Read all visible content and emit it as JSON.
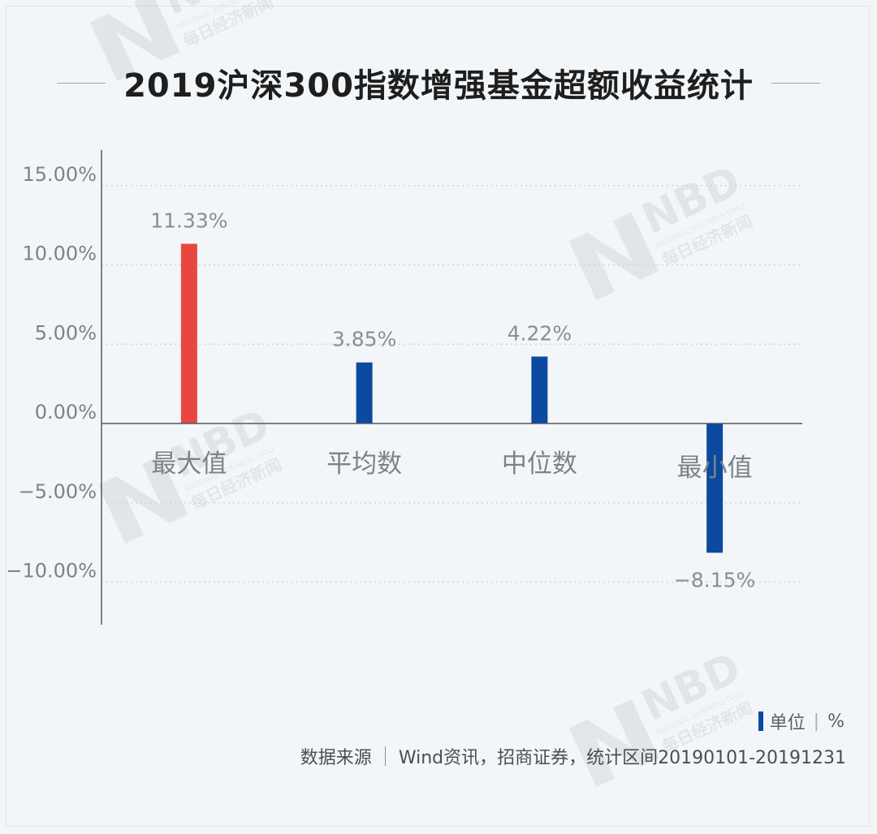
{
  "chart_data": {
    "type": "bar",
    "title": "2019沪深300指数增强基金超额收益统计",
    "categories": [
      "最大值",
      "平均数",
      "中位数",
      "最小值"
    ],
    "values": [
      11.33,
      3.85,
      4.22,
      -8.15
    ],
    "value_labels": [
      "11.33%",
      "3.85%",
      "4.22%",
      "-8.15%"
    ],
    "bar_colors": [
      "#e8473f",
      "#0b4aa0",
      "#0b4aa0",
      "#0b4aa0"
    ],
    "ylim": [
      -12.5,
      17.5
    ],
    "yticks": [
      15,
      10,
      5,
      0,
      -5,
      -10
    ],
    "ytick_labels": [
      "15.00%",
      "10.00%",
      "5.00%",
      "0.00%",
      "-5.00%",
      "-10.00%"
    ],
    "grid": true,
    "legend": {
      "text": "单位",
      "unit": "%",
      "position": "bottom-right"
    },
    "xlabel": "",
    "ylabel": ""
  },
  "source": {
    "label": "数据来源",
    "text": "Wind资讯，招商证券，统计区间20190101-20191231"
  },
  "watermark": {
    "brand": "NBD",
    "tagline": "NATIONAL BUSINESS DAILY",
    "name": "每日经济新闻"
  },
  "colors": {
    "background": "#f3f6f9",
    "accent_red": "#e8473f",
    "accent_blue": "#0b4aa0"
  }
}
